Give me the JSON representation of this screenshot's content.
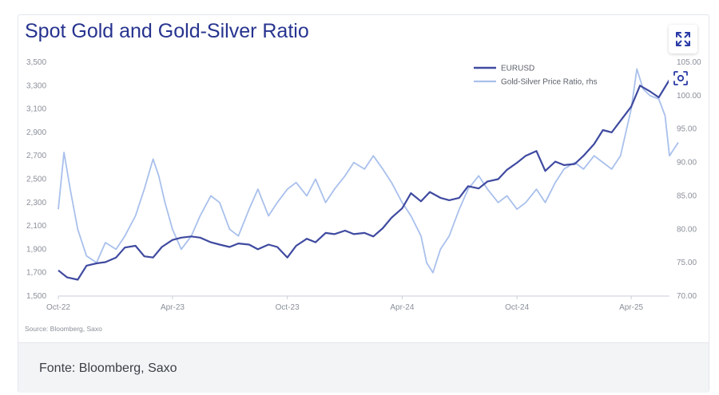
{
  "title": "Spot Gold and Gold-Silver Ratio",
  "source_note": "Source: Bloomberg, Saxo",
  "caption": "Fonte: Bloomberg, Saxo",
  "icons": {
    "expand": "expand-arrows-icon",
    "scan": "scan-focus-icon"
  },
  "colors": {
    "title": "#27348f",
    "series_primary": "#3f4aa0",
    "series_secondary": "#a9c0ec",
    "accent": "#2a3aa6"
  },
  "chart_data": {
    "type": "line",
    "title": "Spot Gold and Gold-Silver Ratio",
    "x_ticks": [
      "Oct-22",
      "Apr-23",
      "Oct-23",
      "Apr-24",
      "Oct-24",
      "Apr-25"
    ],
    "x_range": [
      "2022-10",
      "2025-06"
    ],
    "y_left": {
      "ticks": [
        "1,500",
        "1,700",
        "1,900",
        "2,100",
        "2,300",
        "2,500",
        "2,700",
        "2,900",
        "3,100",
        "3,300",
        "3,500"
      ],
      "range": [
        1500,
        3500
      ]
    },
    "y_right": {
      "ticks": [
        "70.00",
        "75.00",
        "80.00",
        "85.00",
        "90.00",
        "95.00",
        "100.00",
        "105.00"
      ],
      "range": [
        70,
        105
      ]
    },
    "legend_position": "top-right",
    "grid": false,
    "series": [
      {
        "name": "EURUSD",
        "axis": "left",
        "points": [
          [
            "2022-10-01",
            1720
          ],
          [
            "2022-10-15",
            1660
          ],
          [
            "2022-11-01",
            1640
          ],
          [
            "2022-11-15",
            1760
          ],
          [
            "2022-12-01",
            1780
          ],
          [
            "2022-12-15",
            1790
          ],
          [
            "2023-01-01",
            1830
          ],
          [
            "2023-01-15",
            1915
          ],
          [
            "2023-02-01",
            1930
          ],
          [
            "2023-02-15",
            1840
          ],
          [
            "2023-03-01",
            1830
          ],
          [
            "2023-03-15",
            1920
          ],
          [
            "2023-04-01",
            1980
          ],
          [
            "2023-04-15",
            2000
          ],
          [
            "2023-05-01",
            2010
          ],
          [
            "2023-05-15",
            2000
          ],
          [
            "2023-06-01",
            1960
          ],
          [
            "2023-06-15",
            1940
          ],
          [
            "2023-07-01",
            1920
          ],
          [
            "2023-07-15",
            1950
          ],
          [
            "2023-08-01",
            1940
          ],
          [
            "2023-08-15",
            1900
          ],
          [
            "2023-09-01",
            1940
          ],
          [
            "2023-09-15",
            1920
          ],
          [
            "2023-10-01",
            1830
          ],
          [
            "2023-10-15",
            1930
          ],
          [
            "2023-11-01",
            1990
          ],
          [
            "2023-11-15",
            1960
          ],
          [
            "2023-12-01",
            2040
          ],
          [
            "2023-12-15",
            2030
          ],
          [
            "2024-01-01",
            2060
          ],
          [
            "2024-01-15",
            2030
          ],
          [
            "2024-02-01",
            2040
          ],
          [
            "2024-02-15",
            2010
          ],
          [
            "2024-03-01",
            2080
          ],
          [
            "2024-03-15",
            2170
          ],
          [
            "2024-04-01",
            2250
          ],
          [
            "2024-04-15",
            2380
          ],
          [
            "2024-05-01",
            2310
          ],
          [
            "2024-05-15",
            2390
          ],
          [
            "2024-06-01",
            2340
          ],
          [
            "2024-06-15",
            2320
          ],
          [
            "2024-07-01",
            2340
          ],
          [
            "2024-07-15",
            2440
          ],
          [
            "2024-08-01",
            2420
          ],
          [
            "2024-08-15",
            2480
          ],
          [
            "2024-09-01",
            2500
          ],
          [
            "2024-09-15",
            2580
          ],
          [
            "2024-10-01",
            2640
          ],
          [
            "2024-10-15",
            2700
          ],
          [
            "2024-11-01",
            2740
          ],
          [
            "2024-11-15",
            2570
          ],
          [
            "2024-12-01",
            2650
          ],
          [
            "2024-12-15",
            2620
          ],
          [
            "2025-01-01",
            2630
          ],
          [
            "2025-01-15",
            2700
          ],
          [
            "2025-02-01",
            2800
          ],
          [
            "2025-02-15",
            2920
          ],
          [
            "2025-03-01",
            2900
          ],
          [
            "2025-03-15",
            3000
          ],
          [
            "2025-04-01",
            3120
          ],
          [
            "2025-04-15",
            3300
          ],
          [
            "2025-05-01",
            3250
          ],
          [
            "2025-05-15",
            3200
          ],
          [
            "2025-06-01",
            3350
          ],
          [
            "2025-06-15",
            3380
          ]
        ]
      },
      {
        "name": "Gold-Silver Price Ratio, rhs",
        "axis": "right",
        "points": [
          [
            "2022-10-01",
            83.0
          ],
          [
            "2022-10-10",
            91.5
          ],
          [
            "2022-10-20",
            86.0
          ],
          [
            "2022-11-01",
            80.0
          ],
          [
            "2022-11-15",
            76.0
          ],
          [
            "2022-12-01",
            75.0
          ],
          [
            "2022-12-15",
            78.0
          ],
          [
            "2023-01-01",
            77.0
          ],
          [
            "2023-01-15",
            79.0
          ],
          [
            "2023-02-01",
            82.0
          ],
          [
            "2023-02-15",
            86.0
          ],
          [
            "2023-03-01",
            90.5
          ],
          [
            "2023-03-10",
            88.0
          ],
          [
            "2023-03-20",
            84.0
          ],
          [
            "2023-04-01",
            80.0
          ],
          [
            "2023-04-15",
            77.0
          ],
          [
            "2023-05-01",
            79.0
          ],
          [
            "2023-05-15",
            82.0
          ],
          [
            "2023-06-01",
            85.0
          ],
          [
            "2023-06-15",
            84.0
          ],
          [
            "2023-07-01",
            80.0
          ],
          [
            "2023-07-15",
            79.0
          ],
          [
            "2023-08-01",
            83.0
          ],
          [
            "2023-08-15",
            86.0
          ],
          [
            "2023-09-01",
            82.0
          ],
          [
            "2023-09-15",
            84.0
          ],
          [
            "2023-10-01",
            86.0
          ],
          [
            "2023-10-15",
            87.0
          ],
          [
            "2023-11-01",
            85.0
          ],
          [
            "2023-11-15",
            87.5
          ],
          [
            "2023-12-01",
            84.0
          ],
          [
            "2023-12-15",
            86.0
          ],
          [
            "2024-01-01",
            88.0
          ],
          [
            "2024-01-15",
            90.0
          ],
          [
            "2024-02-01",
            89.0
          ],
          [
            "2024-02-15",
            91.0
          ],
          [
            "2024-03-01",
            89.0
          ],
          [
            "2024-03-15",
            87.0
          ],
          [
            "2024-04-01",
            84.0
          ],
          [
            "2024-04-15",
            82.0
          ],
          [
            "2024-05-01",
            79.0
          ],
          [
            "2024-05-10",
            75.0
          ],
          [
            "2024-05-20",
            73.5
          ],
          [
            "2024-06-01",
            77.0
          ],
          [
            "2024-06-15",
            79.0
          ],
          [
            "2024-07-01",
            83.0
          ],
          [
            "2024-07-15",
            86.0
          ],
          [
            "2024-08-01",
            88.0
          ],
          [
            "2024-08-15",
            86.0
          ],
          [
            "2024-09-01",
            84.0
          ],
          [
            "2024-09-15",
            85.0
          ],
          [
            "2024-10-01",
            83.0
          ],
          [
            "2024-10-15",
            84.0
          ],
          [
            "2024-11-01",
            86.0
          ],
          [
            "2024-11-15",
            84.0
          ],
          [
            "2024-12-01",
            87.0
          ],
          [
            "2024-12-15",
            89.0
          ],
          [
            "2025-01-01",
            90.0
          ],
          [
            "2025-01-15",
            89.0
          ],
          [
            "2025-02-01",
            91.0
          ],
          [
            "2025-02-15",
            90.0
          ],
          [
            "2025-03-01",
            89.0
          ],
          [
            "2025-03-15",
            91.0
          ],
          [
            "2025-04-01",
            98.0
          ],
          [
            "2025-04-10",
            104.0
          ],
          [
            "2025-04-20",
            101.0
          ],
          [
            "2025-05-01",
            100.0
          ],
          [
            "2025-05-15",
            99.5
          ],
          [
            "2025-05-25",
            97.0
          ],
          [
            "2025-06-01",
            91.0
          ],
          [
            "2025-06-15",
            93.0
          ]
        ]
      }
    ]
  }
}
